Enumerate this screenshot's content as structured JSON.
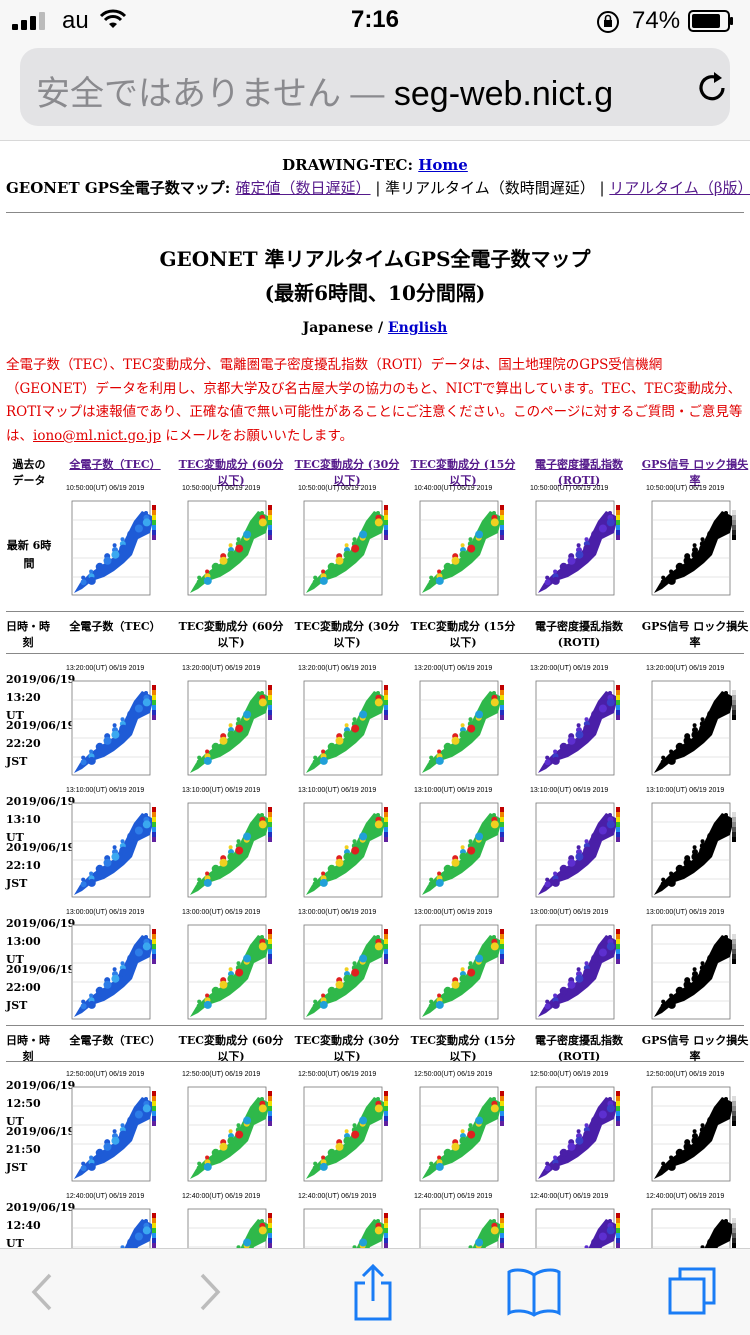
{
  "status": {
    "carrier": "au",
    "time": "7:16",
    "battery": "74%"
  },
  "urlbar": {
    "insecure": "安全ではありません —",
    "domain": "seg-web.nict.g"
  },
  "header": {
    "drawing_prefix": "DRAWING-TEC: ",
    "home": "Home",
    "geonet_prefix": "GEONET GPS全電子数マップ: ",
    "link_confirmed": "確定値（数日遅延）",
    "sep1": " | ",
    "near_realtime": "準リアルタイム（数時間遅延）",
    "sep2": " | ",
    "link_realtime": "リアルタイム（β版）"
  },
  "title": {
    "line1": "GEONET 準リアルタイムGPS全電子数マップ",
    "line2": "(最新6時間、10分間隔)"
  },
  "lang": {
    "japanese": "Japanese / ",
    "english": "English"
  },
  "notice": {
    "text": "全電子数（TEC）、TEC変動成分、電離圏電子密度擾乱指数（ROTI）データは、国土地理院のGPS受信機網（GEONET）データを利用し、京都大学及び名古屋大学の協力のもと、NICTで算出しています。TEC、TEC変動成分、ROTIマップは速報値であり、正確な値で無い可能性があることにご注意ください。このページに対するご質問・ご意見等は、",
    "email": "iono@ml.nict.go.jp",
    "tail": " にメールをお願いいたします。"
  },
  "table": {
    "past_label": "過去の データ",
    "link_headers": [
      "全電子数（TEC）",
      "TEC変動成分 (60分以下)",
      "TEC変動成分 (30分以下)",
      "TEC変動成分 (15分以下)",
      "電子密度擾乱指数 (ROTI)",
      "GPS信号 ロック損失率"
    ],
    "latest_label": "最新 6時間",
    "datetime_label": "日時・時 刻",
    "plain_headers": [
      "全電子数（TEC）",
      "TEC変動成分 (60分以下)",
      "TEC変動成分 (30分以下)",
      "TEC変動成分 (15分以下)",
      "電子密度擾乱指数 (ROTI)",
      "GPS信号 ロック損失率"
    ],
    "latest_ts": [
      "10:50:00(UT) 06/19 2019",
      "10:50:00(UT) 06/19 2019",
      "10:50:00(UT) 06/19 2019",
      "10:40:00(UT) 06/19 2019",
      "10:50:00(UT) 06/19 2019",
      "10:50:00(UT) 06/19 2019"
    ],
    "rows": [
      {
        "ut": "2019/06/19 13:20 UT",
        "jst": "2019/06/19 22:20 JST",
        "ts": "13:20:00(UT) 06/19 2019"
      },
      {
        "ut": "2019/06/19 13:10 UT",
        "jst": "2019/06/19 22:10 JST",
        "ts": "13:10:00(UT) 06/19 2019"
      },
      {
        "ut": "2019/06/19 13:00 UT",
        "jst": "2019/06/19 22:00 JST",
        "ts": "13:00:00(UT) 06/19 2019"
      },
      {
        "ut": "2019/06/19 12:50 UT",
        "jst": "2019/06/19 21:50 JST",
        "ts": "12:50:00(UT) 06/19 2019"
      },
      {
        "ut": "2019/06/19 12:40 UT",
        "jst": "",
        "ts": "12:40:00(UT) 06/19 2019"
      }
    ],
    "map_types": [
      "tec",
      "detrend",
      "detrend",
      "detrend",
      "roti",
      "lol"
    ],
    "map_colors": {
      "tec": "#1e5bd6",
      "detrend": "#2fb84a",
      "roti": "#4a1fa8",
      "lol": "#000000",
      "hot": "#e02020",
      "warm": "#f0d020"
    }
  }
}
